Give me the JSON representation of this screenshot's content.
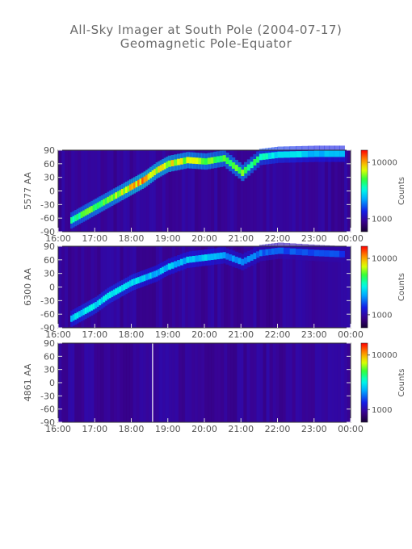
{
  "title": "All-Sky Imager at South Pole (2004-07-17)",
  "subtitle": "Geomagnetic Pole-Equator",
  "chart_data": [
    {
      "type": "heatmap",
      "ylabel": "5577 AA",
      "colorbar_label": "Counts",
      "colorbar_ticks": [
        "10000",
        "1000"
      ],
      "x_ticks": [
        "16:00",
        "17:00",
        "18:00",
        "19:00",
        "20:00",
        "21:00",
        "22:00",
        "23:00",
        "00:00"
      ],
      "y_ticks": [
        "90",
        "60",
        "30",
        "0",
        "-30",
        "-60",
        "-90"
      ],
      "xlim": [
        "16:00",
        "00:00"
      ],
      "ylim": [
        -90,
        90
      ],
      "auroral_track": [
        {
          "t": "16:20",
          "lat": -65,
          "i": 0.6
        },
        {
          "t": "16:40",
          "lat": -50,
          "i": 0.65
        },
        {
          "t": "17:00",
          "lat": -35,
          "i": 0.7
        },
        {
          "t": "17:20",
          "lat": -20,
          "i": 0.7
        },
        {
          "t": "17:40",
          "lat": -5,
          "i": 0.75
        },
        {
          "t": "18:00",
          "lat": 10,
          "i": 0.85
        },
        {
          "t": "18:20",
          "lat": 25,
          "i": 0.9
        },
        {
          "t": "18:40",
          "lat": 45,
          "i": 0.8
        },
        {
          "t": "19:00",
          "lat": 60,
          "i": 0.8
        },
        {
          "t": "19:30",
          "lat": 68,
          "i": 0.75
        },
        {
          "t": "20:00",
          "lat": 65,
          "i": 0.7
        },
        {
          "t": "20:30",
          "lat": 72,
          "i": 0.65
        },
        {
          "t": "21:00",
          "lat": 40,
          "i": 0.7
        },
        {
          "t": "21:30",
          "lat": 75,
          "i": 0.55
        },
        {
          "t": "22:00",
          "lat": 80,
          "i": 0.5
        },
        {
          "t": "23:00",
          "lat": 82,
          "i": 0.45
        },
        {
          "t": "23:50",
          "lat": 82,
          "i": 0.45
        }
      ]
    },
    {
      "type": "heatmap",
      "ylabel": "6300 AA",
      "colorbar_label": "Counts",
      "colorbar_ticks": [
        "10000",
        "1000"
      ],
      "x_ticks": [
        "16:00",
        "17:00",
        "18:00",
        "19:00",
        "20:00",
        "21:00",
        "22:00",
        "23:00",
        "00:00"
      ],
      "y_ticks": [
        "90",
        "60",
        "30",
        "0",
        "-30",
        "-60",
        "-90"
      ],
      "xlim": [
        "16:00",
        "00:00"
      ],
      "ylim": [
        -90,
        90
      ],
      "auroral_track": [
        {
          "t": "16:20",
          "lat": -70,
          "i": 0.45
        },
        {
          "t": "16:40",
          "lat": -55,
          "i": 0.5
        },
        {
          "t": "17:00",
          "lat": -40,
          "i": 0.5
        },
        {
          "t": "17:20",
          "lat": -20,
          "i": 0.5
        },
        {
          "t": "17:40",
          "lat": -5,
          "i": 0.5
        },
        {
          "t": "18:00",
          "lat": 10,
          "i": 0.5
        },
        {
          "t": "18:20",
          "lat": 20,
          "i": 0.45
        },
        {
          "t": "18:40",
          "lat": 30,
          "i": 0.45
        },
        {
          "t": "19:00",
          "lat": 45,
          "i": 0.45
        },
        {
          "t": "19:30",
          "lat": 60,
          "i": 0.45
        },
        {
          "t": "20:00",
          "lat": 65,
          "i": 0.45
        },
        {
          "t": "20:30",
          "lat": 70,
          "i": 0.4
        },
        {
          "t": "21:00",
          "lat": 55,
          "i": 0.4
        },
        {
          "t": "21:30",
          "lat": 75,
          "i": 0.35
        },
        {
          "t": "22:00",
          "lat": 80,
          "i": 0.32
        },
        {
          "t": "23:00",
          "lat": 75,
          "i": 0.3
        },
        {
          "t": "23:50",
          "lat": 72,
          "i": 0.3
        }
      ]
    },
    {
      "type": "heatmap",
      "ylabel": "4861 AA",
      "colorbar_label": "Counts",
      "colorbar_ticks": [
        "10000",
        "1000"
      ],
      "x_ticks": [
        "16:00",
        "17:00",
        "18:00",
        "19:00",
        "20:00",
        "21:00",
        "22:00",
        "23:00",
        "00:00"
      ],
      "y_ticks": [
        "90",
        "60",
        "30",
        "0",
        "-30",
        "-60",
        "-90"
      ],
      "xlim": [
        "16:00",
        "00:00"
      ],
      "ylim": [
        -90,
        90
      ],
      "data_gap_line": "18:35",
      "auroral_track": []
    }
  ]
}
